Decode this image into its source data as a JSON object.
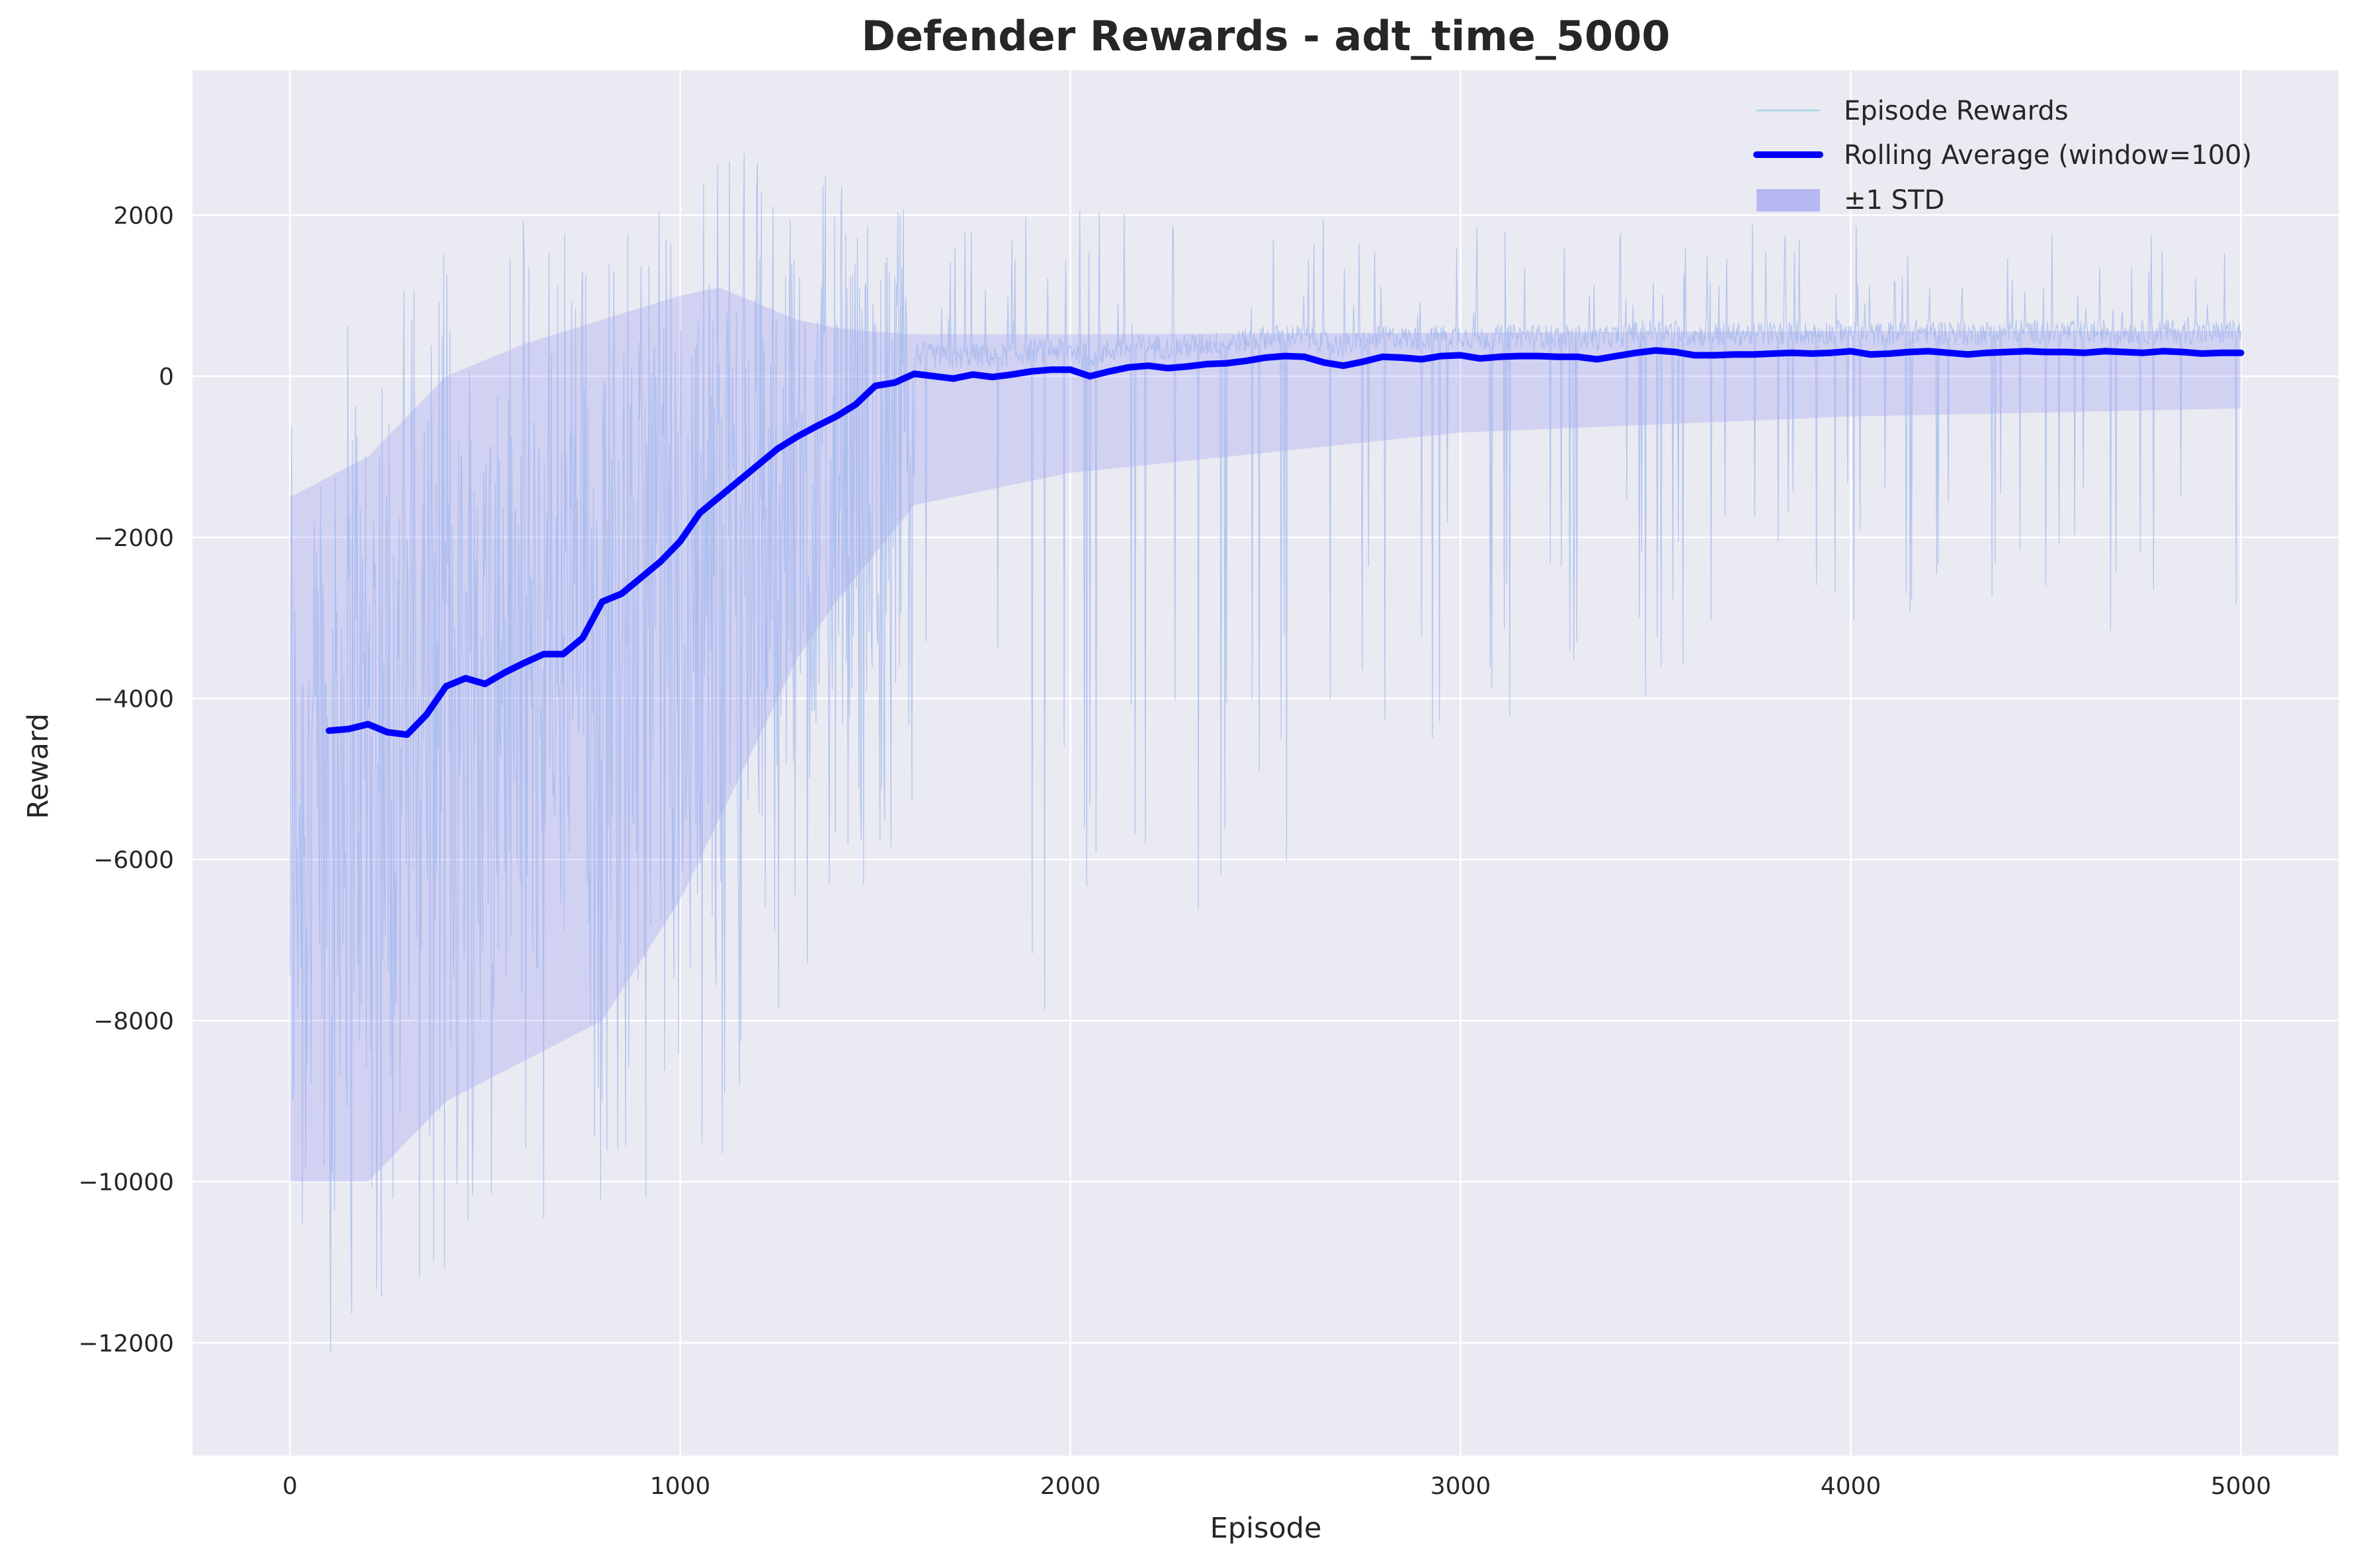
{
  "chart_data": {
    "type": "line",
    "title": "Defender Rewards - adt_time_5000",
    "xlabel": "Episode",
    "ylabel": "Reward",
    "xlim": [
      -250,
      5250
    ],
    "ylim": [
      -13400,
      3800
    ],
    "xticks": [
      0,
      1000,
      2000,
      3000,
      4000,
      5000
    ],
    "xtick_labels": [
      "0",
      "1000",
      "2000",
      "3000",
      "4000",
      "5000"
    ],
    "yticks": [
      -12000,
      -10000,
      -8000,
      -6000,
      -4000,
      -2000,
      0,
      2000
    ],
    "ytick_labels": [
      "−12000",
      "−10000",
      "−8000",
      "−6000",
      "−4000",
      "−2000",
      "0",
      "2000"
    ],
    "grid": true,
    "legend_position": "top-right",
    "series": [
      {
        "name": "Episode Rewards",
        "kind": "noisy-episode-line",
        "color": "#add8e6",
        "x_range": [
          0,
          5000
        ],
        "note_envelope": [
          {
            "x": 0,
            "low": -12500,
            "high": 600
          },
          {
            "x": 200,
            "low": -12300,
            "high": 1300
          },
          {
            "x": 500,
            "low": -11000,
            "high": 1800
          },
          {
            "x": 900,
            "low": -10300,
            "high": 2500
          },
          {
            "x": 1100,
            "low": -9800,
            "high": 3000
          },
          {
            "x": 1300,
            "low": -7800,
            "high": 2700
          },
          {
            "x": 1500,
            "low": -6400,
            "high": 2300
          },
          {
            "x": 2000,
            "low": -8800,
            "high": 2100
          },
          {
            "x": 3000,
            "low": -4400,
            "high": 1900
          },
          {
            "x": 4000,
            "low": -3600,
            "high": 1900
          },
          {
            "x": 5000,
            "low": -3400,
            "high": 1800
          }
        ]
      },
      {
        "name": "Rolling Average (window=100)",
        "kind": "line",
        "color": "#0000ff",
        "x": [
          100,
          150,
          200,
          250,
          300,
          350,
          400,
          450,
          500,
          550,
          600,
          650,
          700,
          750,
          800,
          850,
          900,
          950,
          1000,
          1050,
          1100,
          1150,
          1200,
          1250,
          1300,
          1350,
          1400,
          1450,
          1500,
          1550,
          1600,
          1650,
          1700,
          1750,
          1800,
          1850,
          1900,
          1950,
          2000,
          2050,
          2100,
          2150,
          2200,
          2250,
          2300,
          2350,
          2400,
          2450,
          2500,
          2550,
          2600,
          2650,
          2700,
          2750,
          2800,
          2850,
          2900,
          2950,
          3000,
          3050,
          3100,
          3150,
          3200,
          3250,
          3300,
          3350,
          3400,
          3450,
          3500,
          3550,
          3600,
          3650,
          3700,
          3750,
          3800,
          3850,
          3900,
          3950,
          4000,
          4050,
          4100,
          4150,
          4200,
          4250,
          4300,
          4350,
          4400,
          4450,
          4500,
          4550,
          4600,
          4650,
          4700,
          4750,
          4800,
          4850,
          4900,
          4950,
          5000
        ],
        "values": [
          -4400,
          -4380,
          -4320,
          -4420,
          -4450,
          -4200,
          -3850,
          -3750,
          -3820,
          -3680,
          -3560,
          -3450,
          -3450,
          -3250,
          -2800,
          -2700,
          -2500,
          -2300,
          -2050,
          -1700,
          -1500,
          -1300,
          -1100,
          -900,
          -750,
          -620,
          -500,
          -350,
          -120,
          -80,
          30,
          0,
          -30,
          20,
          -10,
          20,
          60,
          80,
          80,
          0,
          60,
          110,
          130,
          100,
          120,
          150,
          160,
          190,
          230,
          250,
          240,
          170,
          130,
          180,
          240,
          230,
          210,
          250,
          260,
          220,
          240,
          250,
          250,
          240,
          240,
          210,
          250,
          290,
          320,
          300,
          260,
          260,
          270,
          270,
          280,
          290,
          280,
          290,
          310,
          270,
          280,
          300,
          310,
          290,
          270,
          290,
          300,
          310,
          300,
          300,
          290,
          310,
          300,
          290,
          310,
          300,
          280,
          290,
          290
        ]
      },
      {
        "name": "±1 STD",
        "kind": "band",
        "color": "#7b7bf0",
        "x": [
          0,
          200,
          400,
          600,
          800,
          1000,
          1100,
          1200,
          1300,
          1400,
          1500,
          1600,
          2000,
          3000,
          4000,
          5000
        ],
        "lower": [
          -10000,
          -10000,
          -9000,
          -8500,
          -8000,
          -6500,
          -5500,
          -4500,
          -3500,
          -2800,
          -2200,
          -1600,
          -1200,
          -700,
          -500,
          -400
        ],
        "upper": [
          -1500,
          -1000,
          0,
          400,
          700,
          1000,
          1100,
          900,
          700,
          600,
          550,
          520,
          520,
          540,
          560,
          560
        ]
      }
    ]
  }
}
